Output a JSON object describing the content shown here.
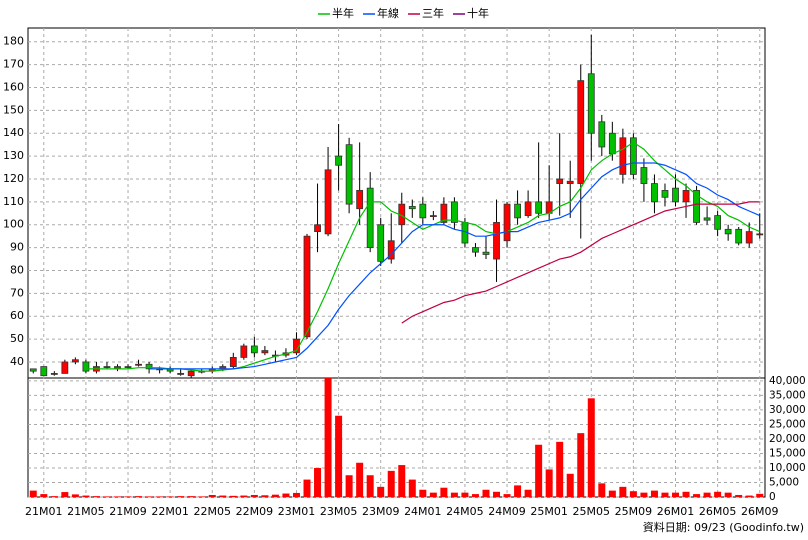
{
  "chart_data": {
    "type": "candlestick",
    "legend": "top",
    "grid": true,
    "categories": [
      null,
      "21M01",
      null,
      null,
      null,
      "21M05",
      null,
      null,
      null,
      "21M09",
      null,
      null,
      null,
      "22M01",
      null,
      null,
      null,
      "22M05",
      null,
      null,
      null,
      "22M09",
      null,
      null,
      null,
      "23M01",
      null,
      null,
      null,
      "23M05",
      null,
      null,
      null,
      "23M09",
      null,
      null,
      null,
      "24M01",
      null,
      null,
      null,
      "24M05",
      null,
      null,
      null,
      "24M09",
      null,
      null,
      null,
      "25M01",
      null,
      null,
      null,
      "25M05",
      null,
      null,
      null,
      "25M09",
      null,
      null,
      null,
      "26M01",
      null,
      null,
      null,
      "26M05",
      null,
      null,
      null,
      "26M09"
    ],
    "open": [
      37,
      38,
      35,
      35,
      40,
      40,
      36,
      38,
      37,
      38,
      39,
      39,
      37,
      37,
      35,
      34,
      36,
      36,
      37,
      38,
      42,
      47,
      44,
      43,
      43,
      44,
      51,
      97,
      96,
      130,
      135,
      107,
      116,
      100,
      85,
      100,
      108,
      109,
      104,
      101,
      110,
      101,
      90,
      88,
      85,
      93,
      109,
      104,
      110,
      105,
      118,
      118,
      118,
      166,
      145,
      140,
      122,
      138,
      125,
      118,
      115,
      116,
      110,
      115,
      103,
      104,
      98,
      98,
      92,
      96
    ],
    "high": [
      37,
      38,
      36,
      41,
      42,
      41,
      40,
      40,
      39,
      39,
      41,
      40,
      38,
      38,
      37,
      37,
      37,
      38,
      39,
      44,
      48,
      51,
      47,
      45,
      46,
      53,
      96,
      118,
      134,
      144,
      138,
      136,
      123,
      103,
      105,
      114,
      111,
      112,
      106,
      112,
      112,
      103,
      92,
      95,
      111,
      110,
      115,
      115,
      136,
      126,
      140,
      128,
      170,
      183,
      148,
      145,
      142,
      140,
      129,
      122,
      118,
      122,
      118,
      117,
      108,
      106,
      100,
      99,
      101,
      105
    ],
    "low": [
      35,
      34,
      34,
      35,
      39,
      35,
      35,
      37,
      36,
      37,
      38,
      35,
      35,
      35,
      34,
      33,
      35,
      35,
      36,
      37,
      41,
      42,
      43,
      40,
      42,
      43,
      50,
      88,
      95,
      115,
      105,
      100,
      88,
      82,
      83,
      92,
      103,
      100,
      102,
      100,
      98,
      90,
      86,
      85,
      75,
      90,
      100,
      103,
      103,
      102,
      104,
      103,
      94,
      128,
      130,
      128,
      118,
      120,
      110,
      105,
      108,
      108,
      103,
      100,
      100,
      95,
      93,
      91,
      90,
      94
    ],
    "close": [
      36,
      34,
      35,
      40,
      41,
      36,
      38,
      38,
      38,
      38,
      39,
      37,
      37,
      36,
      35,
      36,
      36,
      37,
      38,
      42,
      47,
      44,
      45,
      43,
      44,
      50,
      95,
      100,
      124,
      126,
      109,
      115,
      90,
      84,
      93,
      109,
      107,
      103,
      104,
      109,
      101,
      92,
      88,
      87,
      101,
      109,
      103,
      110,
      105,
      110,
      120,
      119,
      163,
      140,
      134,
      131,
      138,
      122,
      118,
      110,
      112,
      110,
      115,
      101,
      102,
      98,
      96,
      92,
      97,
      96
    ],
    "series": [
      {
        "name": "半年",
        "color": "#00c000",
        "values": [
          null,
          null,
          null,
          null,
          null,
          37,
          37,
          37,
          37,
          37,
          37.5,
          37.5,
          37.5,
          37,
          37,
          36.5,
          36,
          36,
          36.5,
          37,
          38,
          39.5,
          41,
          42.5,
          43.5,
          45,
          53,
          62,
          72,
          83,
          93,
          103,
          110,
          110,
          106,
          104,
          101,
          98,
          100,
          102,
          102,
          101,
          100,
          97,
          96,
          97,
          99,
          101,
          104,
          105,
          108,
          110,
          116,
          124,
          128,
          131,
          133,
          136,
          133,
          128,
          124,
          120,
          117,
          113,
          110,
          108,
          104,
          102,
          99,
          97
        ]
      },
      {
        "name": "年線",
        "color": "#0050ff",
        "values": [
          null,
          null,
          null,
          null,
          null,
          null,
          null,
          null,
          null,
          null,
          null,
          37,
          37,
          37,
          37,
          37,
          37,
          37,
          37,
          37,
          37.5,
          38,
          39,
          40,
          41,
          42,
          46,
          51,
          56,
          63,
          69,
          74,
          79,
          83,
          87,
          92,
          97,
          100,
          100,
          100,
          98,
          97,
          95,
          95,
          96,
          97,
          97,
          99,
          101,
          102,
          103,
          105,
          111,
          116,
          121,
          124,
          126,
          127,
          127,
          127,
          126,
          124,
          122,
          118,
          116,
          113,
          111,
          108,
          106,
          104
        ]
      },
      {
        "name": "三年",
        "color": "#c00040",
        "values": [
          null,
          null,
          null,
          null,
          null,
          null,
          null,
          null,
          null,
          null,
          null,
          null,
          null,
          null,
          null,
          null,
          null,
          null,
          null,
          null,
          null,
          null,
          null,
          null,
          null,
          null,
          null,
          null,
          null,
          null,
          null,
          null,
          null,
          null,
          null,
          57,
          60,
          62,
          64,
          66,
          67,
          69,
          70,
          71,
          73,
          75,
          77,
          79,
          81,
          83,
          85,
          86,
          88,
          91,
          94,
          96,
          98,
          100,
          102,
          104,
          106,
          107,
          108,
          109,
          109,
          109,
          109,
          109,
          110,
          110
        ]
      },
      {
        "name": "十年",
        "color": "#800080"
      }
    ],
    "ylim": [
      33,
      186
    ],
    "yticks": [
      40,
      50,
      60,
      70,
      80,
      90,
      100,
      110,
      120,
      130,
      140,
      150,
      160,
      170,
      180
    ],
    "volume": {
      "color": "#ff0000",
      "values": [
        2200,
        1000,
        300,
        1700,
        900,
        500,
        300,
        200,
        200,
        200,
        300,
        200,
        200,
        200,
        300,
        300,
        200,
        700,
        500,
        400,
        500,
        700,
        600,
        800,
        1200,
        1400,
        6000,
        10000,
        41000,
        28000,
        7500,
        11800,
        7500,
        3500,
        9000,
        11000,
        6000,
        2500,
        1500,
        3200,
        1500,
        1500,
        1000,
        2500,
        1800,
        1000,
        4000,
        2500,
        18000,
        9500,
        19000,
        8000,
        22000,
        34000,
        4700,
        2200,
        3500,
        2000,
        1500,
        2200,
        1500,
        1500,
        1800,
        1000,
        1500,
        1800,
        1500,
        700,
        500,
        1100
      ],
      "ylim": [
        0,
        41000
      ],
      "yticks": [
        0,
        {
          "value": 5000,
          "label": "5,000"
        },
        {
          "value": 10000,
          "label": "10,000"
        },
        {
          "value": 15000,
          "label": "15,000"
        },
        {
          "value": 20000,
          "label": "20,000"
        },
        {
          "value": 25000,
          "label": "25,000"
        },
        {
          "value": 30000,
          "label": "30,000"
        },
        {
          "value": 35000,
          "label": "35,000"
        },
        {
          "value": 40000,
          "label": "40,000"
        }
      ]
    },
    "footer": "資料日期: 09/23 (Goodinfo.tw)"
  }
}
